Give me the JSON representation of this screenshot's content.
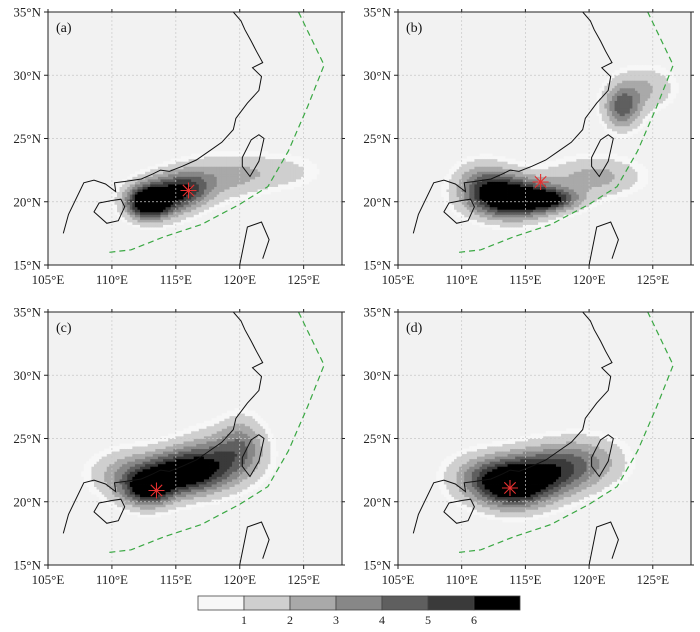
{
  "colorbar": {
    "ticks": [
      "1",
      "2",
      "3",
      "4",
      "5",
      "6"
    ],
    "colors": [
      "#f7f7f7",
      "#cfcfcf",
      "#a9a9a9",
      "#878787",
      "#5f5f5f",
      "#3a3a3a",
      "#000000"
    ]
  },
  "axes": {
    "x_ticks": [
      "105°E",
      "110°E",
      "115°E",
      "120°E",
      "125°E"
    ],
    "y_ticks": [
      "15°N",
      "20°N",
      "25°N",
      "30°N",
      "35°N"
    ],
    "x_values": [
      105,
      110,
      115,
      120,
      125
    ],
    "y_values": [
      15,
      20,
      25,
      30,
      35
    ],
    "lon_range": [
      105,
      128
    ],
    "lat_range": [
      15,
      35
    ]
  },
  "style": {
    "background": "#f2f2f2",
    "boundary_color": "#3aa843",
    "marker_color": "#e53030",
    "coast_color": "#111111"
  },
  "panels": [
    {
      "label": "(a)",
      "marker": {
        "lon": 116.0,
        "lat": 20.8,
        "symbol": "✳"
      }
    },
    {
      "label": "(b)",
      "marker": {
        "lon": 116.2,
        "lat": 21.5,
        "symbol": "✳"
      }
    },
    {
      "label": "(c)",
      "marker": {
        "lon": 113.5,
        "lat": 20.8,
        "symbol": "✳"
      }
    },
    {
      "label": "(d)",
      "marker": {
        "lon": 113.8,
        "lat": 21.0,
        "symbol": "✳"
      }
    }
  ]
}
